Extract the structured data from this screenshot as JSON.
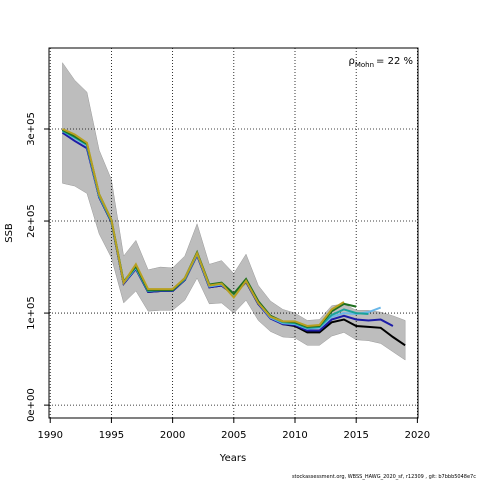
{
  "chart_data": {
    "type": "line",
    "xlabel": "Years",
    "ylabel": "SSB",
    "annotation": {
      "symbol": "ρ",
      "sub": "Mohn",
      "text": "= 22 %"
    },
    "footer": "stockassessment.org, WBSS_HAWG_2020_sf, r12309 , git: b7bbb5048e7c",
    "xlim": [
      1989.9,
      2020.05
    ],
    "ylim": [
      -14000,
      388000
    ],
    "xticks": [
      1990,
      1995,
      2000,
      2005,
      2010,
      2015,
      2020
    ],
    "yticks": [
      {
        "value": 0,
        "label": "0e+00"
      },
      {
        "value": 100000,
        "label": "1e+05"
      },
      {
        "value": 200000,
        "label": "2e+05"
      },
      {
        "value": 300000,
        "label": "3e+05"
      }
    ],
    "grid": true,
    "x": [
      1991,
      1992,
      1993,
      1994,
      1995,
      1996,
      1997,
      1998,
      1999,
      2000,
      2001,
      2002,
      2003,
      2004,
      2005,
      2006,
      2007,
      2008,
      2009,
      2010,
      2011,
      2012,
      2013,
      2014,
      2015,
      2016,
      2017,
      2018,
      2019
    ],
    "band": {
      "color": "#bdbdbd",
      "upper": [
        372000,
        353000,
        340000,
        277000,
        245000,
        162000,
        179000,
        147000,
        150000,
        149000,
        162000,
        197000,
        153000,
        157000,
        143000,
        164000,
        130000,
        113000,
        104000,
        100000,
        92000,
        93000,
        108000,
        110000,
        103000,
        103000,
        101000,
        97000,
        92000
      ],
      "lower": [
        241000,
        238000,
        230000,
        186000,
        160000,
        111000,
        124000,
        102000,
        103000,
        103000,
        114000,
        138000,
        110000,
        111000,
        100000,
        114000,
        92000,
        80000,
        74000,
        73000,
        65000,
        65000,
        75000,
        79000,
        71000,
        70000,
        67000,
        58000,
        49000
      ]
    },
    "series": [
      {
        "color": "#000000",
        "values": [
          299000,
          291000,
          283000,
          226000,
          199000,
          132000,
          148000,
          123000,
          124000,
          124000,
          136000,
          163000,
          128000,
          130000,
          120000,
          134000,
          110000,
          95000,
          88000,
          86000,
          79000,
          79000,
          90000,
          93000,
          86000,
          85000,
          84000,
          74000,
          65000
        ]
      },
      {
        "color": "#1c1ca8",
        "values": [
          296000,
          287000,
          279000,
          226000,
          199000,
          132000,
          148000,
          123000,
          124000,
          124000,
          136000,
          163000,
          128000,
          130000,
          120000,
          134000,
          110000,
          94000,
          88000,
          87000,
          81000,
          81000,
          93000,
          97000,
          93000,
          92000,
          93000,
          86000,
          null
        ]
      },
      {
        "color": "#6ab7e8",
        "values": [
          298000,
          290000,
          282000,
          227000,
          200000,
          133000,
          149000,
          124000,
          125000,
          125000,
          137000,
          164000,
          129000,
          131000,
          120000,
          135000,
          111000,
          95000,
          89000,
          88000,
          83000,
          84000,
          96000,
          100000,
          99000,
          101000,
          106000,
          null,
          null
        ]
      },
      {
        "color": "#1aa39a",
        "values": [
          298000,
          291000,
          283000,
          228000,
          200000,
          134000,
          150000,
          124000,
          125000,
          125000,
          137000,
          165000,
          130000,
          132000,
          121000,
          136000,
          112000,
          96000,
          90000,
          89000,
          84000,
          85000,
          98000,
          104000,
          100000,
          99000,
          null,
          null,
          null
        ]
      },
      {
        "color": "#1f6f1f",
        "values": [
          299000,
          292000,
          284000,
          229000,
          201000,
          134000,
          151000,
          125000,
          125000,
          125000,
          138000,
          166000,
          131000,
          133000,
          121000,
          137000,
          113000,
          97000,
          91000,
          90000,
          85000,
          86000,
          102000,
          110000,
          107000,
          null,
          null,
          null,
          null
        ]
      },
      {
        "color": "#b8a020",
        "values": [
          300000,
          294000,
          285000,
          229000,
          201000,
          133000,
          153000,
          126000,
          126000,
          126000,
          138000,
          165000,
          130000,
          132000,
          117000,
          135000,
          111000,
          96000,
          91000,
          91000,
          86000,
          87000,
          104000,
          112000,
          null,
          null,
          null,
          null,
          null
        ]
      }
    ]
  }
}
